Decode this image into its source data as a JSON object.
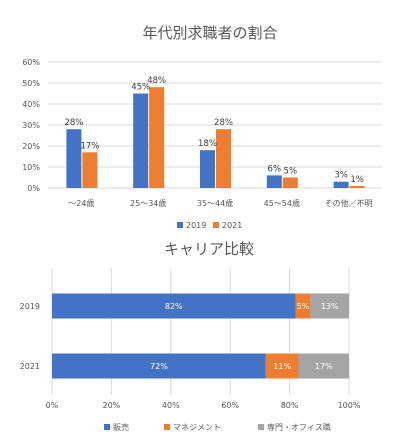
{
  "chart_data": [
    {
      "type": "bar",
      "title": "年代別求職者の割合",
      "categories": [
        "〜24歳",
        "25〜34歳",
        "35〜44歳",
        "45〜54歳",
        "その他／不明"
      ],
      "series": [
        {
          "name": "2019",
          "values": [
            28,
            45,
            18,
            6,
            3
          ],
          "labels": [
            "28%",
            "45%",
            "18%",
            "6%",
            "3%"
          ],
          "color": "#4472C4"
        },
        {
          "name": "2021",
          "values": [
            17,
            48,
            28,
            5,
            1
          ],
          "labels": [
            "17%",
            "48%",
            "28%",
            "5%",
            "1%"
          ],
          "color": "#ED7D31"
        }
      ],
      "ylim": [
        0,
        60
      ],
      "yticks": [
        "0%",
        "10%",
        "20%",
        "30%",
        "40%",
        "50%",
        "60%"
      ],
      "grid": true,
      "legend": "bottom"
    },
    {
      "type": "bar",
      "orientation": "horizontal",
      "stacked": true,
      "title": "キャリア比較",
      "categories": [
        "2019",
        "2021"
      ],
      "series": [
        {
          "name": "販売",
          "values": [
            82,
            72
          ],
          "labels": [
            "82%",
            "72%"
          ],
          "color": "#4472C4"
        },
        {
          "name": "マネジメント",
          "values": [
            5,
            11
          ],
          "labels": [
            "5%",
            "11%"
          ],
          "color": "#ED7D31"
        },
        {
          "name": "専門・オフィス職",
          "values": [
            13,
            17
          ],
          "labels": [
            "13%",
            "17%"
          ],
          "color": "#A5A5A5"
        }
      ],
      "xlim": [
        0,
        100
      ],
      "xticks": [
        "0%",
        "20%",
        "40%",
        "60%",
        "80%",
        "100%"
      ],
      "grid": true,
      "legend": "bottom"
    }
  ]
}
